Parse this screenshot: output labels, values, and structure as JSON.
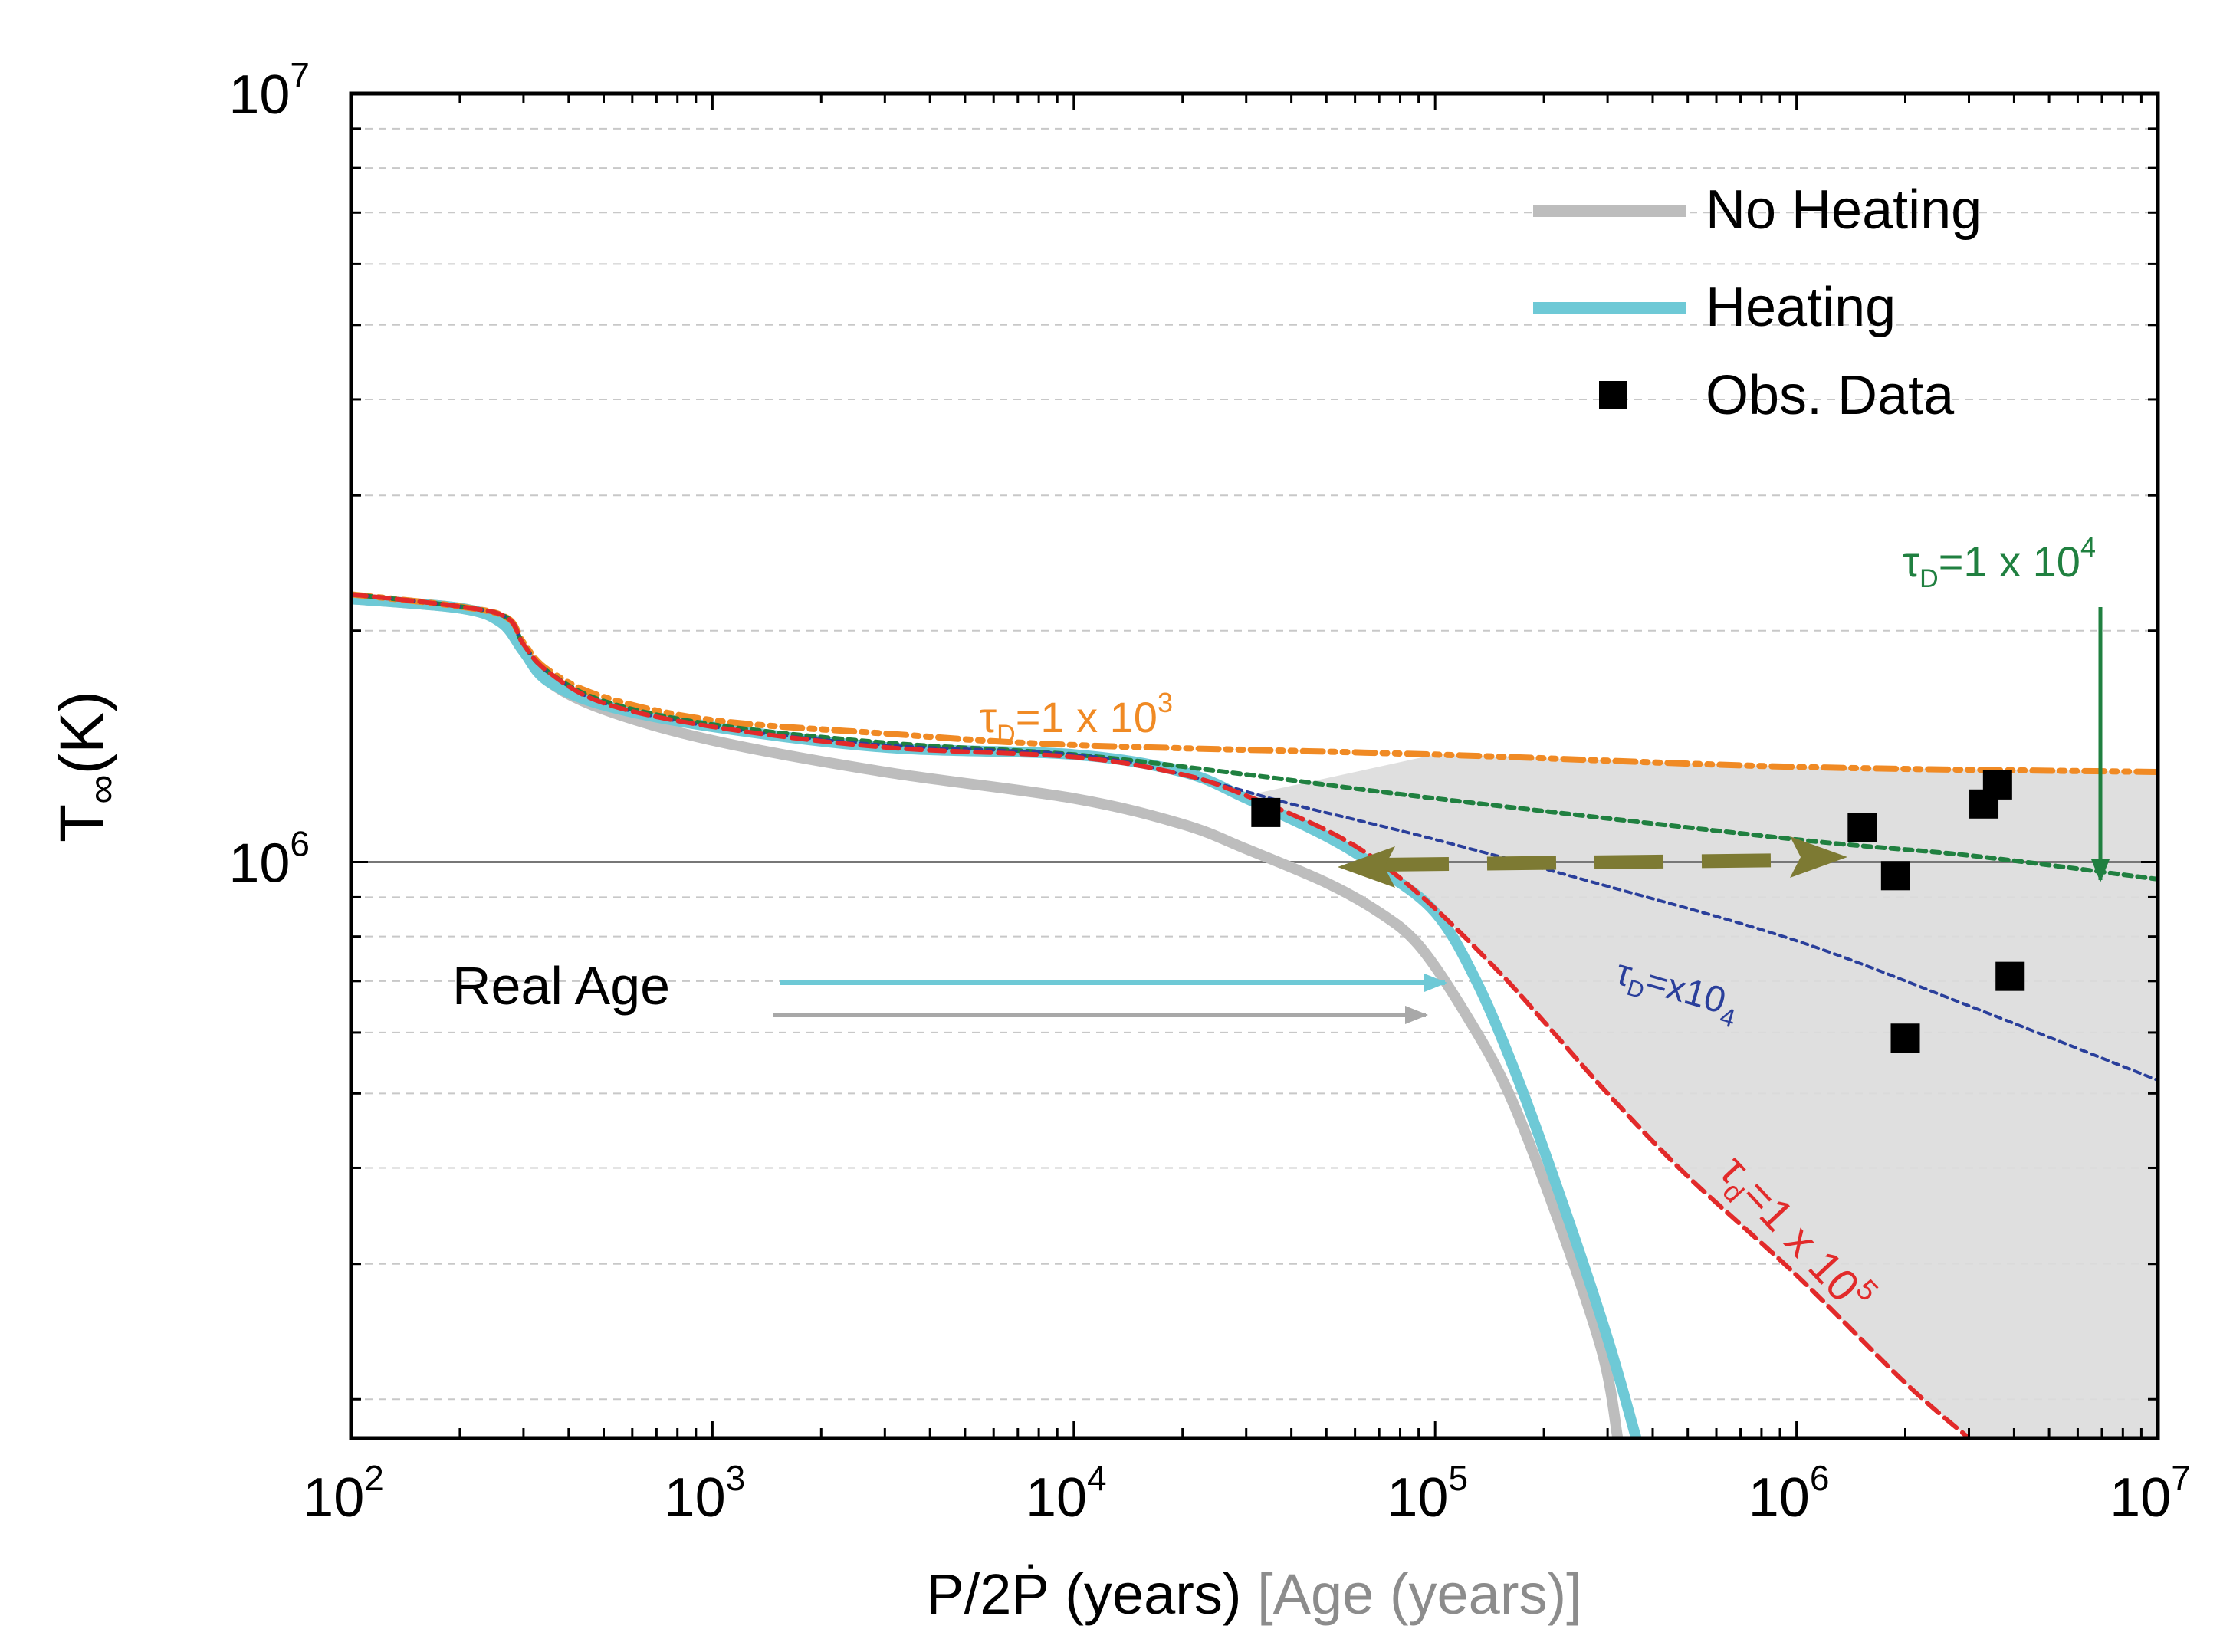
{
  "chart_data": {
    "type": "line",
    "x_scale": "log",
    "y_scale": "log",
    "xlim": [
      100,
      10000000
    ],
    "ylim": [
      178000,
      10000000
    ],
    "y_tick_values": [
      1000000,
      10000000
    ],
    "y_tick_labels": [
      {
        "base": "10",
        "exp": "6"
      },
      {
        "base": "10",
        "exp": "7"
      }
    ],
    "x_tick_values": [
      100,
      1000,
      10000,
      100000,
      1000000,
      10000000
    ],
    "x_tick_labels": [
      {
        "base": "10",
        "exp": "2"
      },
      {
        "base": "10",
        "exp": "3"
      },
      {
        "base": "10",
        "exp": "4"
      },
      {
        "base": "10",
        "exp": "5"
      },
      {
        "base": "10",
        "exp": "6"
      },
      {
        "base": "10",
        "exp": "7"
      }
    ],
    "xlabel_main": "P/2Ṗ (years)",
    "xlabel_secondary": "[Age (years)]",
    "ylabel_main": "T",
    "ylabel_sub": "∞",
    "ylabel_unit": "(K)",
    "grid": "dashed horizontal at minor y ticks",
    "legend_position": "top-right",
    "legend": [
      {
        "label": "No Heating",
        "kind": "line",
        "color": "#b8b8b8"
      },
      {
        "label": "Heating",
        "kind": "line",
        "color": "#6ec9d6"
      },
      {
        "label": "Obs. Data",
        "kind": "marker",
        "color": "#000000"
      }
    ],
    "series": [
      {
        "name": "No Heating",
        "color": "#bdbdbd",
        "points": [
          [
            100,
            2200000
          ],
          [
            200,
            2140000
          ],
          [
            260,
            2050000
          ],
          [
            300,
            1880000
          ],
          [
            350,
            1720000
          ],
          [
            500,
            1580000
          ],
          [
            1000,
            1440000
          ],
          [
            3000,
            1310000
          ],
          [
            10000,
            1210000
          ],
          [
            20000,
            1120000
          ],
          [
            30000,
            1040000
          ],
          [
            50000,
            940000
          ],
          [
            70000,
            860000
          ],
          [
            90000,
            780000
          ],
          [
            120000,
            640000
          ],
          [
            160000,
            500000
          ],
          [
            220000,
            340000
          ],
          [
            290000,
            230000
          ],
          [
            320000,
            178000
          ]
        ]
      },
      {
        "name": "Heating",
        "color": "#6ec9d6",
        "points": [
          [
            100,
            2200000
          ],
          [
            200,
            2140000
          ],
          [
            260,
            2050000
          ],
          [
            300,
            1880000
          ],
          [
            350,
            1720000
          ],
          [
            500,
            1600000
          ],
          [
            1000,
            1500000
          ],
          [
            3000,
            1410000
          ],
          [
            10000,
            1380000
          ],
          [
            20000,
            1310000
          ],
          [
            30000,
            1210000
          ],
          [
            50000,
            1080000
          ],
          [
            70000,
            980000
          ],
          [
            100000,
            860000
          ],
          [
            130000,
            700000
          ],
          [
            170000,
            520000
          ],
          [
            230000,
            350000
          ],
          [
            300000,
            240000
          ],
          [
            360000,
            178000
          ]
        ]
      },
      {
        "name": "τD=1 x 10^3",
        "color": "#f08a24",
        "dash": "dashdot",
        "points": [
          [
            100,
            2230000
          ],
          [
            200,
            2150000
          ],
          [
            270,
            2080000
          ],
          [
            300,
            1930000
          ],
          [
            350,
            1780000
          ],
          [
            500,
            1640000
          ],
          [
            1000,
            1530000
          ],
          [
            3000,
            1470000
          ],
          [
            10000,
            1420000
          ],
          [
            100000,
            1380000
          ],
          [
            1000000,
            1330000
          ],
          [
            10000000,
            1310000
          ]
        ]
      },
      {
        "name": "τD=1 x 10^4",
        "color": "#208040",
        "dash": "dotted",
        "points": [
          [
            100,
            2230000
          ],
          [
            200,
            2150000
          ],
          [
            270,
            2080000
          ],
          [
            300,
            1920000
          ],
          [
            350,
            1770000
          ],
          [
            500,
            1620000
          ],
          [
            1000,
            1510000
          ],
          [
            3000,
            1430000
          ],
          [
            10000,
            1380000
          ],
          [
            30000,
            1300000
          ],
          [
            100000,
            1210000
          ],
          [
            1000000,
            1070000
          ],
          [
            3000000,
            1020000
          ],
          [
            10000000,
            950000
          ]
        ]
      },
      {
        "name": "τD=x10_4",
        "color": "#2a3f9b",
        "dash": "dotted",
        "points": [
          [
            100,
            2230000
          ],
          [
            200,
            2150000
          ],
          [
            270,
            2080000
          ],
          [
            300,
            1920000
          ],
          [
            350,
            1770000
          ],
          [
            500,
            1610000
          ],
          [
            1000,
            1500000
          ],
          [
            3000,
            1420000
          ],
          [
            10000,
            1380000
          ],
          [
            20000,
            1300000
          ],
          [
            40000,
            1190000
          ],
          [
            100000,
            1070000
          ],
          [
            300000,
            930000
          ],
          [
            1000000,
            790000
          ],
          [
            3000000,
            650000
          ],
          [
            10000000,
            520000
          ]
        ]
      },
      {
        "name": "τd=1 x 10^5",
        "color": "#e22a2a",
        "dash": "dashed",
        "points": [
          [
            100,
            2230000
          ],
          [
            200,
            2150000
          ],
          [
            270,
            2080000
          ],
          [
            300,
            1920000
          ],
          [
            350,
            1770000
          ],
          [
            500,
            1610000
          ],
          [
            1000,
            1500000
          ],
          [
            3000,
            1410000
          ],
          [
            10000,
            1370000
          ],
          [
            20000,
            1300000
          ],
          [
            30000,
            1220000
          ],
          [
            50000,
            1100000
          ],
          [
            70000,
            1000000
          ],
          [
            100000,
            870000
          ],
          [
            150000,
            720000
          ],
          [
            200000,
            620000
          ],
          [
            300000,
            500000
          ],
          [
            500000,
            390000
          ],
          [
            1000000,
            290000
          ],
          [
            2000000,
            210000
          ],
          [
            3000000,
            178000
          ]
        ]
      }
    ],
    "obs_data": [
      [
        34000,
        1160000
      ],
      [
        1520000,
        1110000
      ],
      [
        1880000,
        960000
      ],
      [
        3300000,
        1190000
      ],
      [
        3600000,
        1260000
      ],
      [
        3900000,
        710000
      ],
      [
        2000000,
        590000
      ]
    ],
    "annotations": {
      "tau1e3": {
        "greek": "τ",
        "sub": "D",
        "rest": "=1 x 10",
        "sup": "3",
        "color": "#f08a24"
      },
      "tau1e4": {
        "greek": "τ",
        "sub": "D",
        "rest": "=1 x 10",
        "sup": "4",
        "color": "#208040"
      },
      "taux104": {
        "greek": "τ",
        "sub": "D",
        "rest": "=x10",
        "sub2": "4",
        "color": "#2a3f9b"
      },
      "tau1e5": {
        "greek": "τ",
        "sub": "d",
        "rest": "=1 x 10",
        "sup": "5",
        "color": "#e22a2a"
      },
      "real_age": "Real Age"
    }
  }
}
